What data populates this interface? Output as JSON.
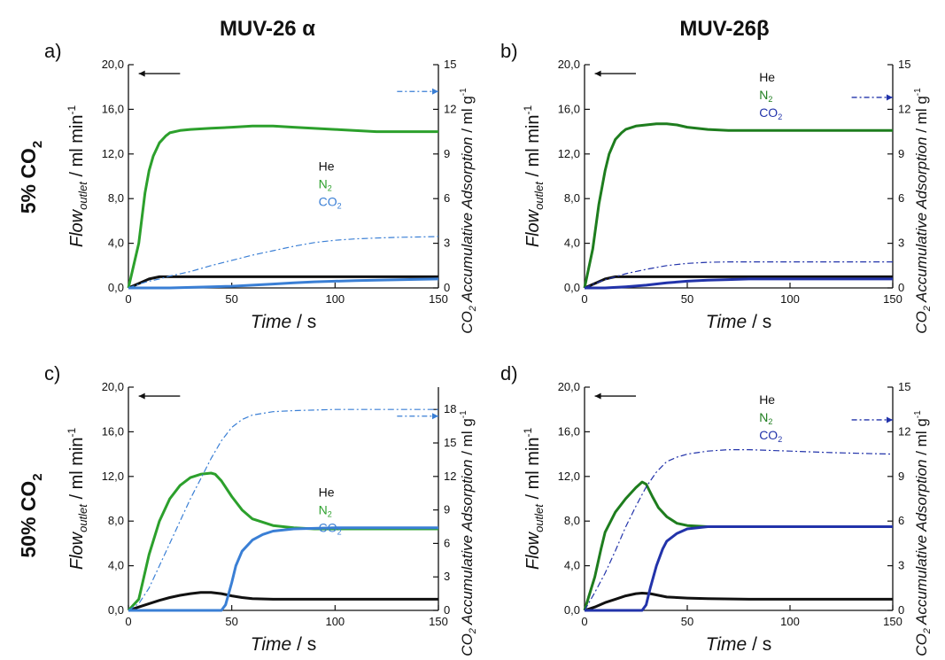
{
  "figure": {
    "col_titles": [
      "MUV-26 α",
      "MUV-26β"
    ],
    "row_labels": [
      {
        "main": "5% CO",
        "sub": "2"
      },
      {
        "main": "50% CO",
        "sub": "2"
      }
    ]
  },
  "axis_text": {
    "x_label": "Time",
    "x_unit": " / s",
    "y_left_main": "Flow",
    "y_left_sub": "outlet",
    "y_left_unit": " / ml min",
    "y_left_sup": "-1",
    "y_right_co": "CO",
    "y_right_sub": "2",
    "y_right_label": " Accumulative Adsorption",
    "y_right_unit": "/ ml g",
    "y_right_sup": "-1"
  },
  "legend_text": {
    "he": "He",
    "n2_main": "N",
    "co2_main": "CO",
    "sub2": "2"
  },
  "colors": {
    "he": "#111111",
    "n2": "#2ca02c",
    "n2_dark": "#1e7d1e",
    "co2_light": "#3a7fd5",
    "co2_dark": "#2233aa"
  },
  "chart_data": [
    {
      "type": "line",
      "panel_label": "a)",
      "co2_variant": "light",
      "n2_variant": "light",
      "xlim": [
        0,
        150
      ],
      "ylim_left": [
        0,
        20
      ],
      "ylim_right": [
        0,
        15
      ],
      "x_ticks": [
        "0",
        "50",
        "100",
        "150"
      ],
      "y_left_ticks": [
        "0,0",
        "4,0",
        "8,0",
        "12,0",
        "16,0",
        "20,0"
      ],
      "y_right_ticks": [
        "0",
        "3",
        "6",
        "9",
        "12",
        "15"
      ],
      "series": [
        {
          "name": "He",
          "axis": "left",
          "style": "solid",
          "x": [
            0,
            5,
            10,
            15,
            20,
            30,
            50,
            100,
            150
          ],
          "y": [
            0,
            0.4,
            0.8,
            1.0,
            1.0,
            1.0,
            1.0,
            1.0,
            1.0
          ]
        },
        {
          "name": "N2",
          "axis": "left",
          "style": "solid",
          "x": [
            0,
            5,
            8,
            10,
            12,
            15,
            18,
            20,
            25,
            30,
            40,
            50,
            60,
            70,
            80,
            100,
            120,
            150
          ],
          "y": [
            0,
            4.0,
            8.5,
            10.5,
            11.8,
            13.0,
            13.6,
            13.9,
            14.1,
            14.2,
            14.3,
            14.4,
            14.5,
            14.5,
            14.4,
            14.2,
            14.0,
            14.0
          ]
        },
        {
          "name": "CO2",
          "axis": "left",
          "style": "solid",
          "x": [
            0,
            20,
            30,
            40,
            50,
            60,
            70,
            80,
            90,
            100,
            110,
            120,
            150
          ],
          "y": [
            0,
            0,
            0.05,
            0.1,
            0.15,
            0.25,
            0.35,
            0.45,
            0.55,
            0.6,
            0.65,
            0.7,
            0.8
          ]
        },
        {
          "name": "CO2 accumulative",
          "axis": "right",
          "style": "dashdot",
          "x": [
            0,
            5,
            10,
            15,
            20,
            30,
            40,
            50,
            60,
            70,
            80,
            90,
            100,
            110,
            120,
            130,
            140,
            150
          ],
          "y": [
            0,
            0.25,
            0.45,
            0.6,
            0.8,
            1.1,
            1.5,
            1.85,
            2.2,
            2.5,
            2.8,
            3.05,
            3.2,
            3.3,
            3.35,
            3.4,
            3.42,
            3.45
          ]
        }
      ],
      "arrows": [
        {
          "axis": "left",
          "direction": "left",
          "x_from": 25,
          "x_to": 5,
          "y": 19.2
        },
        {
          "axis": "right",
          "direction": "right",
          "x_from": 130,
          "x_to": 150,
          "y": 13.2
        }
      ]
    },
    {
      "type": "line",
      "panel_label": "b)",
      "co2_variant": "dark",
      "n2_variant": "dark",
      "xlim": [
        0,
        150
      ],
      "ylim_left": [
        0,
        20
      ],
      "ylim_right": [
        0,
        15
      ],
      "x_ticks": [
        "0",
        "50",
        "100",
        "150"
      ],
      "y_left_ticks": [
        "0,0",
        "4,0",
        "8,0",
        "12,0",
        "16,0",
        "20,0"
      ],
      "y_right_ticks": [
        "0",
        "3",
        "6",
        "9",
        "12",
        "15"
      ],
      "series": [
        {
          "name": "He",
          "axis": "left",
          "style": "solid",
          "x": [
            0,
            5,
            10,
            15,
            20,
            30,
            50,
            100,
            150
          ],
          "y": [
            0,
            0.4,
            0.8,
            1.0,
            1.0,
            1.0,
            1.0,
            1.0,
            1.0
          ]
        },
        {
          "name": "N2",
          "axis": "left",
          "style": "solid",
          "x": [
            0,
            4,
            7,
            10,
            12,
            15,
            18,
            20,
            25,
            30,
            35,
            40,
            45,
            50,
            60,
            70,
            80,
            100,
            120,
            150
          ],
          "y": [
            0,
            3.5,
            7.5,
            10.5,
            12.0,
            13.3,
            13.9,
            14.2,
            14.5,
            14.6,
            14.7,
            14.7,
            14.6,
            14.4,
            14.2,
            14.1,
            14.1,
            14.1,
            14.1,
            14.1
          ]
        },
        {
          "name": "CO2",
          "axis": "left",
          "style": "solid",
          "x": [
            0,
            10,
            20,
            30,
            40,
            50,
            60,
            70,
            80,
            90,
            100,
            150
          ],
          "y": [
            0,
            0,
            0.1,
            0.25,
            0.45,
            0.6,
            0.7,
            0.75,
            0.8,
            0.8,
            0.8,
            0.8
          ]
        },
        {
          "name": "CO2 accumulative",
          "axis": "right",
          "style": "dashdot",
          "x": [
            0,
            5,
            10,
            20,
            30,
            40,
            50,
            60,
            70,
            80,
            100,
            150
          ],
          "y": [
            0,
            0.3,
            0.55,
            0.95,
            1.25,
            1.5,
            1.65,
            1.72,
            1.75,
            1.75,
            1.75,
            1.75
          ]
        }
      ],
      "arrows": [
        {
          "axis": "left",
          "direction": "left",
          "x_from": 25,
          "x_to": 5,
          "y": 19.2
        },
        {
          "axis": "right",
          "direction": "right",
          "x_from": 130,
          "x_to": 150,
          "y": 12.8
        }
      ]
    },
    {
      "type": "line",
      "panel_label": "c)",
      "co2_variant": "light",
      "n2_variant": "light",
      "xlim": [
        0,
        150
      ],
      "ylim_left": [
        0,
        20
      ],
      "ylim_right": [
        0,
        20
      ],
      "x_ticks": [
        "0",
        "50",
        "100",
        "150"
      ],
      "y_left_ticks": [
        "0,0",
        "4,0",
        "8,0",
        "12,0",
        "16,0",
        "20,0"
      ],
      "y_right_ticks": [
        "0",
        "3",
        "6",
        "9",
        "12",
        "15",
        "18"
      ],
      "series": [
        {
          "name": "He",
          "axis": "left",
          "style": "solid",
          "x": [
            0,
            5,
            10,
            15,
            20,
            25,
            30,
            35,
            40,
            45,
            50,
            55,
            60,
            70,
            80,
            100,
            150
          ],
          "y": [
            0,
            0.3,
            0.6,
            0.9,
            1.15,
            1.35,
            1.5,
            1.6,
            1.6,
            1.5,
            1.3,
            1.15,
            1.05,
            1.0,
            1.0,
            1.0,
            1.0
          ]
        },
        {
          "name": "N2",
          "axis": "left",
          "style": "solid",
          "x": [
            0,
            5,
            10,
            15,
            20,
            25,
            30,
            35,
            40,
            42,
            45,
            50,
            55,
            60,
            70,
            80,
            90,
            100,
            150
          ],
          "y": [
            0,
            1.0,
            5.0,
            8.0,
            10.0,
            11.2,
            11.9,
            12.2,
            12.3,
            12.2,
            11.6,
            10.2,
            9.0,
            8.2,
            7.6,
            7.4,
            7.3,
            7.3,
            7.3
          ]
        },
        {
          "name": "CO2",
          "axis": "left",
          "style": "solid",
          "x": [
            0,
            45,
            47,
            50,
            52,
            55,
            60,
            65,
            70,
            80,
            100,
            150
          ],
          "y": [
            0,
            0,
            0.5,
            2.5,
            4.0,
            5.3,
            6.3,
            6.8,
            7.1,
            7.3,
            7.4,
            7.4
          ]
        },
        {
          "name": "CO2 accumulative",
          "axis": "right",
          "style": "dashdot",
          "x": [
            0,
            5,
            10,
            15,
            20,
            25,
            30,
            35,
            40,
            45,
            50,
            55,
            60,
            70,
            80,
            100,
            120,
            150
          ],
          "y": [
            0,
            0.6,
            2.0,
            4.0,
            6.0,
            8.0,
            10.0,
            11.8,
            13.6,
            15.2,
            16.4,
            17.1,
            17.5,
            17.8,
            17.9,
            18.0,
            18.0,
            18.0
          ]
        }
      ],
      "arrows": [
        {
          "axis": "left",
          "direction": "left",
          "x_from": 25,
          "x_to": 5,
          "y": 19.2
        },
        {
          "axis": "right",
          "direction": "right",
          "x_from": 130,
          "x_to": 150,
          "y": 17.4
        }
      ]
    },
    {
      "type": "line",
      "panel_label": "d)",
      "co2_variant": "dark",
      "n2_variant": "dark",
      "xlim": [
        0,
        150
      ],
      "ylim_left": [
        0,
        20
      ],
      "ylim_right": [
        0,
        15
      ],
      "x_ticks": [
        "0",
        "50",
        "100",
        "150"
      ],
      "y_left_ticks": [
        "0,0",
        "4,0",
        "8,0",
        "12,0",
        "16,0",
        "20,0"
      ],
      "y_right_ticks": [
        "0",
        "3",
        "6",
        "9",
        "12",
        "15"
      ],
      "series": [
        {
          "name": "He",
          "axis": "left",
          "style": "solid",
          "x": [
            0,
            5,
            10,
            15,
            20,
            25,
            28,
            32,
            36,
            40,
            50,
            60,
            80,
            100,
            150
          ],
          "y": [
            0,
            0.3,
            0.7,
            1.0,
            1.3,
            1.5,
            1.55,
            1.5,
            1.35,
            1.2,
            1.1,
            1.05,
            1.0,
            1.0,
            1.0
          ]
        },
        {
          "name": "N2",
          "axis": "left",
          "style": "solid",
          "x": [
            0,
            5,
            8,
            10,
            15,
            20,
            25,
            28,
            30,
            33,
            36,
            40,
            45,
            50,
            60,
            80,
            100,
            150
          ],
          "y": [
            0,
            3.0,
            5.5,
            7.0,
            8.8,
            10.0,
            11.0,
            11.5,
            11.3,
            10.2,
            9.2,
            8.4,
            7.8,
            7.6,
            7.5,
            7.5,
            7.5,
            7.5
          ]
        },
        {
          "name": "CO2",
          "axis": "left",
          "style": "solid",
          "x": [
            0,
            28,
            30,
            32,
            35,
            38,
            40,
            45,
            50,
            60,
            80,
            100,
            150
          ],
          "y": [
            0,
            0,
            0.5,
            2.0,
            4.0,
            5.5,
            6.2,
            6.9,
            7.3,
            7.5,
            7.5,
            7.5,
            7.5
          ]
        },
        {
          "name": "CO2 accumulative",
          "axis": "right",
          "style": "dashdot",
          "x": [
            0,
            5,
            10,
            15,
            20,
            25,
            30,
            35,
            40,
            45,
            50,
            60,
            70,
            80,
            100,
            120,
            150
          ],
          "y": [
            0,
            1.2,
            2.5,
            4.0,
            5.6,
            7.0,
            8.3,
            9.3,
            10.0,
            10.3,
            10.5,
            10.7,
            10.8,
            10.8,
            10.7,
            10.6,
            10.5
          ]
        }
      ],
      "arrows": [
        {
          "axis": "left",
          "direction": "left",
          "x_from": 25,
          "x_to": 5,
          "y": 19.2
        },
        {
          "axis": "right",
          "direction": "right",
          "x_from": 130,
          "x_to": 150,
          "y": 12.8
        }
      ]
    }
  ]
}
